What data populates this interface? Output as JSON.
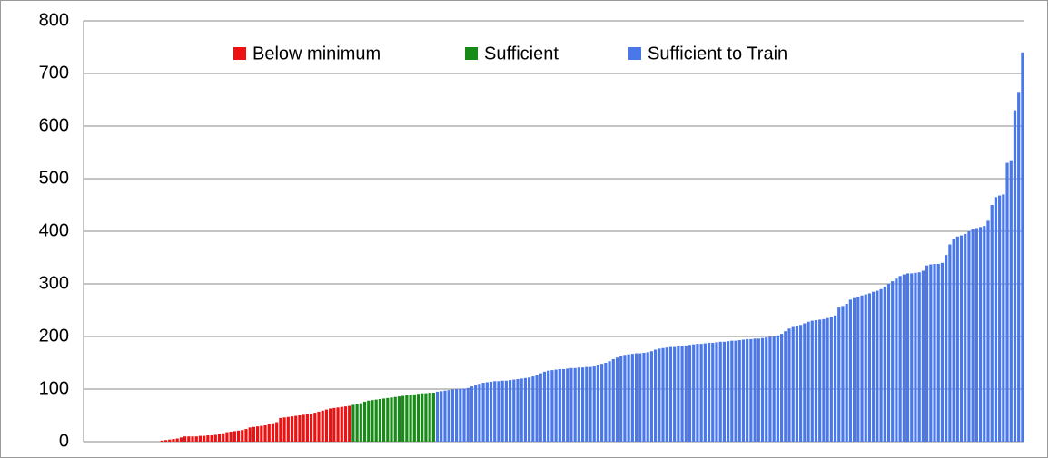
{
  "chart_data": {
    "type": "bar",
    "ylim": [
      0,
      800
    ],
    "yticks": [
      0,
      100,
      200,
      300,
      400,
      500,
      600,
      700,
      800
    ],
    "grid": true,
    "legend": "top",
    "series": [
      {
        "name": "Below minimum",
        "color": "#ee1111",
        "values": [
          0,
          0,
          0,
          0,
          0,
          0,
          0,
          0,
          0,
          0,
          0,
          0,
          0,
          0,
          0,
          0,
          0,
          0,
          0,
          0,
          2,
          3,
          4,
          5,
          6,
          8,
          10,
          10,
          10,
          10,
          11,
          11,
          12,
          12,
          13,
          14,
          16,
          18,
          19,
          20,
          21,
          22,
          24,
          27,
          28,
          29,
          30,
          31,
          33,
          35,
          37,
          45,
          46,
          47,
          48,
          49,
          50,
          51,
          52,
          53,
          55,
          57,
          59,
          61,
          63,
          64,
          65,
          66,
          67,
          68
        ]
      },
      {
        "name": "Sufficient",
        "color": "#178a17",
        "values": [
          70,
          71,
          73,
          76,
          78,
          79,
          80,
          81,
          82,
          83,
          84,
          85,
          86,
          87,
          88,
          89,
          90,
          91,
          92,
          92,
          93,
          93
        ]
      },
      {
        "name": "Sufficient to Train",
        "color": "#4a78e8",
        "values": [
          95,
          96,
          97,
          98,
          99,
          100,
          100,
          101,
          102,
          105,
          108,
          110,
          112,
          113,
          114,
          115,
          115,
          116,
          116,
          117,
          118,
          119,
          120,
          121,
          122,
          124,
          126,
          130,
          133,
          135,
          136,
          137,
          138,
          138,
          139,
          140,
          140,
          141,
          141,
          142,
          142,
          143,
          145,
          148,
          150,
          153,
          157,
          160,
          163,
          165,
          166,
          167,
          168,
          168,
          169,
          170,
          172,
          175,
          177,
          178,
          179,
          180,
          180,
          181,
          182,
          183,
          184,
          185,
          186,
          186,
          187,
          188,
          188,
          189,
          190,
          190,
          191,
          192,
          192,
          193,
          194,
          195,
          195,
          196,
          196,
          197,
          198,
          199,
          200,
          202,
          205,
          210,
          215,
          218,
          220,
          222,
          225,
          228,
          230,
          231,
          232,
          233,
          235,
          238,
          240,
          255,
          258,
          262,
          270,
          273,
          275,
          278,
          280,
          282,
          285,
          287,
          290,
          295,
          300,
          305,
          310,
          315,
          318,
          320,
          320,
          321,
          322,
          325,
          335,
          337,
          338,
          338,
          340,
          355,
          375,
          385,
          390,
          392,
          395,
          400,
          404,
          406,
          408,
          410,
          420,
          450,
          465,
          468,
          470,
          530,
          535,
          630,
          665,
          740
        ]
      }
    ]
  }
}
